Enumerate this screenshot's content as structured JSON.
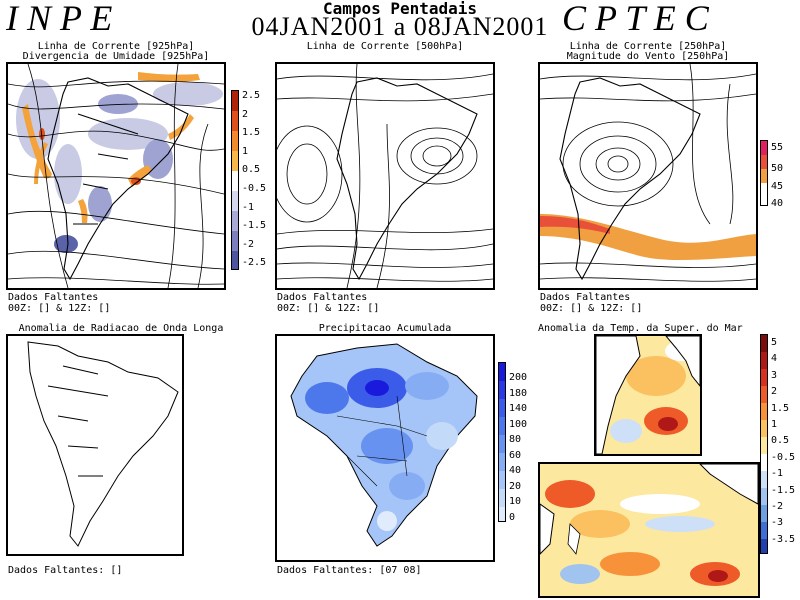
{
  "header": {
    "left_logo": "I N P E",
    "right_logo": "C P T E C",
    "title": "Campos Pentadais",
    "date_start": "04JAN2001",
    "date_sep": "a",
    "date_end": "08JAN2001"
  },
  "panels": {
    "p925": {
      "title1": "Linha de Corrente [925hPa]",
      "title2": "Divergencia de Umidade [925hPa]",
      "missing": "Dados Faltantes",
      "runs": "00Z: [] & 12Z: []",
      "colorbar": [
        "2.5",
        "2",
        "1.5",
        "1",
        "0.5",
        "-0.5",
        "-1",
        "-1.5",
        "-2",
        "-2.5"
      ],
      "colors": [
        "#b0240a",
        "#e0501a",
        "#f08a2c",
        "#f7b84a",
        "#ffffff",
        "#d7d7ee",
        "#a9abd6",
        "#7b7fbc",
        "#4d55a0"
      ]
    },
    "p500": {
      "title1": "Linha de Corrente [500hPa]",
      "missing": "Dados Faltantes",
      "runs": "00Z: [] & 12Z: []"
    },
    "p250": {
      "title1": "Linha de Corrente [250hPa]",
      "title2": "Magnitude do Vento [250hPa]",
      "missing": "Dados Faltantes",
      "runs": "00Z: [] & 12Z: []",
      "colorbar": [
        "55",
        "50",
        "45",
        "40"
      ],
      "colors": [
        "#e02060",
        "#e8503a",
        "#f0a040"
      ]
    },
    "olr": {
      "title1": "Anomalia de Radiacao de Onda Longa",
      "missing": "Dados Faltantes: []"
    },
    "precip": {
      "title1": "Precipitacao Acumulada",
      "missing": "Dados Faltantes: [07 08]",
      "colorbar": [
        "200",
        "180",
        "140",
        "100",
        "80",
        "60",
        "40",
        "20",
        "10",
        "0"
      ],
      "colors": [
        "#1a1adc",
        "#2a3be6",
        "#3b5ce8",
        "#4d78ec",
        "#6792f0",
        "#86acf4",
        "#a5c4f7",
        "#c4daf9",
        "#e0ecfc"
      ]
    },
    "sst": {
      "title1": "Anomalia da Temp. da Super. do Mar",
      "colorbar": [
        "5",
        "4",
        "3",
        "2",
        "1.5",
        "1",
        "0.5",
        "-0.5",
        "-1",
        "-1.5",
        "-2",
        "-3",
        "-3.5"
      ],
      "colors": [
        "#7a0c0c",
        "#b01818",
        "#d83020",
        "#ee5a28",
        "#f7923a",
        "#fbc060",
        "#fde8a0",
        "#ffffff",
        "#cde0f7",
        "#a0c4ef",
        "#6e9ee4",
        "#3f6fd6",
        "#2040b0"
      ]
    }
  }
}
